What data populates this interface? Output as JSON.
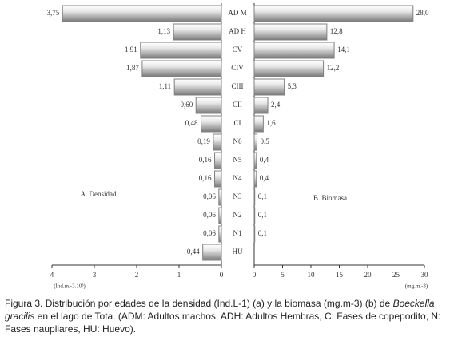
{
  "chart_data": {
    "type": "butterfly",
    "categories": [
      "AD M",
      "AD H",
      "CV",
      "CIV",
      "CIII",
      "CII",
      "CI",
      "N6",
      "N5",
      "N4",
      "N3",
      "N2",
      "N1",
      "HU"
    ],
    "series": [
      {
        "name": "A. Densidad",
        "color": "#808080",
        "xlabel": "(Ind.m.-3.10³)",
        "xlim": [
          4,
          0
        ],
        "xticks": [
          4,
          3,
          2,
          1,
          0
        ],
        "values": [
          3.75,
          1.13,
          1.91,
          1.87,
          1.11,
          0.6,
          0.48,
          0.19,
          0.16,
          0.16,
          0.06,
          0.06,
          0.06,
          0.44
        ],
        "value_labels": [
          "3,75",
          "1,13",
          "1,91",
          "1,87",
          "1,11",
          "0,60",
          "0,48",
          "0,19",
          "0,16",
          "0,16",
          "0,06",
          "0,06",
          "0,06",
          "0,44"
        ]
      },
      {
        "name": "B. Biomasa",
        "color": "#808080",
        "xlabel": "(mg.m.-3)",
        "xlim": [
          0,
          30
        ],
        "xticks": [
          0,
          5,
          10,
          15,
          20,
          25,
          30
        ],
        "values": [
          28.0,
          12.8,
          14.1,
          12.2,
          5.3,
          2.4,
          1.6,
          0.5,
          0.4,
          0.4,
          0.1,
          0.1,
          0.1,
          null
        ],
        "value_labels": [
          "28,0",
          "12,8",
          "14,1",
          "12,2",
          "5,3",
          "2,4",
          "1,6",
          "0,5",
          "0,4",
          "0,4",
          "0,1",
          "0,1",
          "0,1",
          null
        ]
      }
    ],
    "caption": [
      "Figura 3. Distribución por edades de la densidad (Ind.L-1) (a) y la biomasa (mg.m-3) (b) de ",
      "Boeckella gracilis",
      " en el lago de Tota. (ADM: Adultos machos, ADH: Adultos Hembras, C: Fases de copepodito, N: Fases naupliares, HU: Huevo)."
    ]
  }
}
